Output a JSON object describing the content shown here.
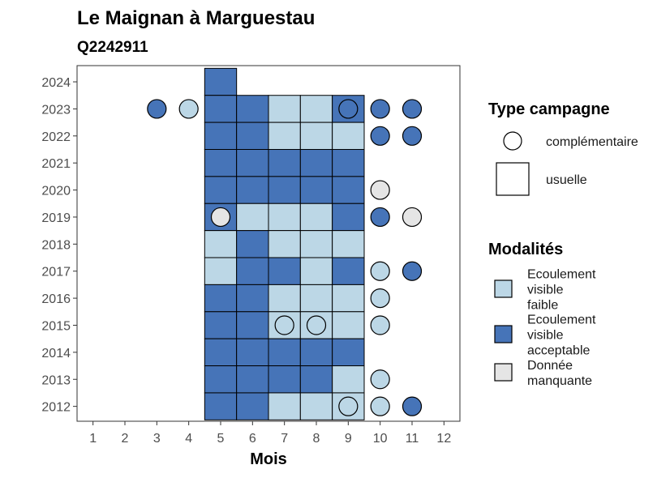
{
  "title": "Le Maignan à Marguestau",
  "subtitle": "Q2242911",
  "colors": {
    "faible": "#bcd7e6",
    "acceptable": "#4674b8",
    "manquante": "#e5e5e5"
  },
  "legend_type": {
    "title": "Type campagne",
    "items": [
      {
        "label": "complémentaire",
        "shape": "circle"
      },
      {
        "label": "usuelle",
        "shape": "square"
      }
    ]
  },
  "legend_mod": {
    "title": "Modalités",
    "items": [
      {
        "key": "faible",
        "lines": [
          "Ecoulement",
          "visible",
          "faible"
        ]
      },
      {
        "key": "acceptable",
        "lines": [
          "Ecoulement",
          "visible",
          "acceptable"
        ]
      },
      {
        "key": "manquante",
        "lines": [
          "Donnée",
          "manquante"
        ]
      }
    ]
  },
  "chart_data": {
    "type": "heatmap",
    "xlabel": "Mois",
    "ylabel": "",
    "x_ticks": [
      "1",
      "2",
      "3",
      "4",
      "5",
      "6",
      "7",
      "8",
      "9",
      "10",
      "11",
      "12"
    ],
    "y_ticks": [
      "2012",
      "2013",
      "2014",
      "2015",
      "2016",
      "2017",
      "2018",
      "2019",
      "2020",
      "2021",
      "2022",
      "2023",
      "2024"
    ],
    "xlim": [
      0.5,
      12.5
    ],
    "ylim": [
      2011.45,
      2024.6
    ],
    "points": [
      {
        "year": 2024,
        "month": 5,
        "shape": "square",
        "mod": "acceptable"
      },
      {
        "year": 2023,
        "month": 3,
        "shape": "circle",
        "mod": "acceptable"
      },
      {
        "year": 2023,
        "month": 4,
        "shape": "circle",
        "mod": "faible"
      },
      {
        "year": 2023,
        "month": 5,
        "shape": "square",
        "mod": "acceptable"
      },
      {
        "year": 2023,
        "month": 6,
        "shape": "square",
        "mod": "acceptable"
      },
      {
        "year": 2023,
        "month": 7,
        "shape": "square",
        "mod": "faible"
      },
      {
        "year": 2023,
        "month": 8,
        "shape": "square",
        "mod": "faible"
      },
      {
        "year": 2023,
        "month": 9,
        "shape": "square",
        "mod": "acceptable"
      },
      {
        "year": 2023,
        "month": 9,
        "shape": "circle",
        "mod": "acceptable"
      },
      {
        "year": 2023,
        "month": 10,
        "shape": "circle",
        "mod": "acceptable"
      },
      {
        "year": 2023,
        "month": 11,
        "shape": "circle",
        "mod": "acceptable"
      },
      {
        "year": 2022,
        "month": 5,
        "shape": "square",
        "mod": "acceptable"
      },
      {
        "year": 2022,
        "month": 6,
        "shape": "square",
        "mod": "acceptable"
      },
      {
        "year": 2022,
        "month": 7,
        "shape": "square",
        "mod": "faible"
      },
      {
        "year": 2022,
        "month": 8,
        "shape": "square",
        "mod": "faible"
      },
      {
        "year": 2022,
        "month": 9,
        "shape": "square",
        "mod": "faible"
      },
      {
        "year": 2022,
        "month": 10,
        "shape": "circle",
        "mod": "acceptable"
      },
      {
        "year": 2022,
        "month": 11,
        "shape": "circle",
        "mod": "acceptable"
      },
      {
        "year": 2021,
        "month": 5,
        "shape": "square",
        "mod": "acceptable"
      },
      {
        "year": 2021,
        "month": 6,
        "shape": "square",
        "mod": "acceptable"
      },
      {
        "year": 2021,
        "month": 7,
        "shape": "square",
        "mod": "acceptable"
      },
      {
        "year": 2021,
        "month": 8,
        "shape": "square",
        "mod": "acceptable"
      },
      {
        "year": 2021,
        "month": 9,
        "shape": "square",
        "mod": "acceptable"
      },
      {
        "year": 2020,
        "month": 5,
        "shape": "square",
        "mod": "acceptable"
      },
      {
        "year": 2020,
        "month": 6,
        "shape": "square",
        "mod": "acceptable"
      },
      {
        "year": 2020,
        "month": 7,
        "shape": "square",
        "mod": "acceptable"
      },
      {
        "year": 2020,
        "month": 8,
        "shape": "square",
        "mod": "acceptable"
      },
      {
        "year": 2020,
        "month": 9,
        "shape": "square",
        "mod": "acceptable"
      },
      {
        "year": 2020,
        "month": 10,
        "shape": "circle",
        "mod": "manquante"
      },
      {
        "year": 2019,
        "month": 5,
        "shape": "square",
        "mod": "acceptable"
      },
      {
        "year": 2019,
        "month": 5,
        "shape": "circle",
        "mod": "manquante"
      },
      {
        "year": 2019,
        "month": 6,
        "shape": "square",
        "mod": "faible"
      },
      {
        "year": 2019,
        "month": 7,
        "shape": "square",
        "mod": "faible"
      },
      {
        "year": 2019,
        "month": 8,
        "shape": "square",
        "mod": "faible"
      },
      {
        "year": 2019,
        "month": 9,
        "shape": "square",
        "mod": "acceptable"
      },
      {
        "year": 2019,
        "month": 10,
        "shape": "circle",
        "mod": "acceptable"
      },
      {
        "year": 2019,
        "month": 11,
        "shape": "circle",
        "mod": "manquante"
      },
      {
        "year": 2018,
        "month": 5,
        "shape": "square",
        "mod": "faible"
      },
      {
        "year": 2018,
        "month": 6,
        "shape": "square",
        "mod": "acceptable"
      },
      {
        "year": 2018,
        "month": 7,
        "shape": "square",
        "mod": "faible"
      },
      {
        "year": 2018,
        "month": 8,
        "shape": "square",
        "mod": "faible"
      },
      {
        "year": 2018,
        "month": 9,
        "shape": "square",
        "mod": "faible"
      },
      {
        "year": 2017,
        "month": 5,
        "shape": "square",
        "mod": "faible"
      },
      {
        "year": 2017,
        "month": 6,
        "shape": "square",
        "mod": "acceptable"
      },
      {
        "year": 2017,
        "month": 7,
        "shape": "square",
        "mod": "acceptable"
      },
      {
        "year": 2017,
        "month": 8,
        "shape": "square",
        "mod": "faible"
      },
      {
        "year": 2017,
        "month": 9,
        "shape": "square",
        "mod": "acceptable"
      },
      {
        "year": 2017,
        "month": 10,
        "shape": "circle",
        "mod": "faible"
      },
      {
        "year": 2017,
        "month": 11,
        "shape": "circle",
        "mod": "acceptable"
      },
      {
        "year": 2016,
        "month": 5,
        "shape": "square",
        "mod": "acceptable"
      },
      {
        "year": 2016,
        "month": 6,
        "shape": "square",
        "mod": "acceptable"
      },
      {
        "year": 2016,
        "month": 7,
        "shape": "square",
        "mod": "faible"
      },
      {
        "year": 2016,
        "month": 8,
        "shape": "square",
        "mod": "faible"
      },
      {
        "year": 2016,
        "month": 9,
        "shape": "square",
        "mod": "faible"
      },
      {
        "year": 2016,
        "month": 10,
        "shape": "circle",
        "mod": "faible"
      },
      {
        "year": 2015,
        "month": 5,
        "shape": "square",
        "mod": "acceptable"
      },
      {
        "year": 2015,
        "month": 6,
        "shape": "square",
        "mod": "acceptable"
      },
      {
        "year": 2015,
        "month": 7,
        "shape": "square",
        "mod": "faible"
      },
      {
        "year": 2015,
        "month": 7,
        "shape": "circle",
        "mod": "faible"
      },
      {
        "year": 2015,
        "month": 8,
        "shape": "square",
        "mod": "faible"
      },
      {
        "year": 2015,
        "month": 8,
        "shape": "circle",
        "mod": "faible"
      },
      {
        "year": 2015,
        "month": 9,
        "shape": "square",
        "mod": "faible"
      },
      {
        "year": 2015,
        "month": 10,
        "shape": "circle",
        "mod": "faible"
      },
      {
        "year": 2014,
        "month": 5,
        "shape": "square",
        "mod": "acceptable"
      },
      {
        "year": 2014,
        "month": 6,
        "shape": "square",
        "mod": "acceptable"
      },
      {
        "year": 2014,
        "month": 7,
        "shape": "square",
        "mod": "acceptable"
      },
      {
        "year": 2014,
        "month": 8,
        "shape": "square",
        "mod": "acceptable"
      },
      {
        "year": 2014,
        "month": 9,
        "shape": "square",
        "mod": "acceptable"
      },
      {
        "year": 2013,
        "month": 5,
        "shape": "square",
        "mod": "acceptable"
      },
      {
        "year": 2013,
        "month": 6,
        "shape": "square",
        "mod": "acceptable"
      },
      {
        "year": 2013,
        "month": 7,
        "shape": "square",
        "mod": "acceptable"
      },
      {
        "year": 2013,
        "month": 8,
        "shape": "square",
        "mod": "acceptable"
      },
      {
        "year": 2013,
        "month": 9,
        "shape": "square",
        "mod": "faible"
      },
      {
        "year": 2013,
        "month": 10,
        "shape": "circle",
        "mod": "faible"
      },
      {
        "year": 2012,
        "month": 5,
        "shape": "square",
        "mod": "acceptable"
      },
      {
        "year": 2012,
        "month": 6,
        "shape": "square",
        "mod": "acceptable"
      },
      {
        "year": 2012,
        "month": 7,
        "shape": "square",
        "mod": "faible"
      },
      {
        "year": 2012,
        "month": 8,
        "shape": "square",
        "mod": "faible"
      },
      {
        "year": 2012,
        "month": 9,
        "shape": "square",
        "mod": "faible"
      },
      {
        "year": 2012,
        "month": 9,
        "shape": "circle",
        "mod": "faible"
      },
      {
        "year": 2012,
        "month": 10,
        "shape": "circle",
        "mod": "faible"
      },
      {
        "year": 2012,
        "month": 11,
        "shape": "circle",
        "mod": "acceptable"
      }
    ]
  }
}
